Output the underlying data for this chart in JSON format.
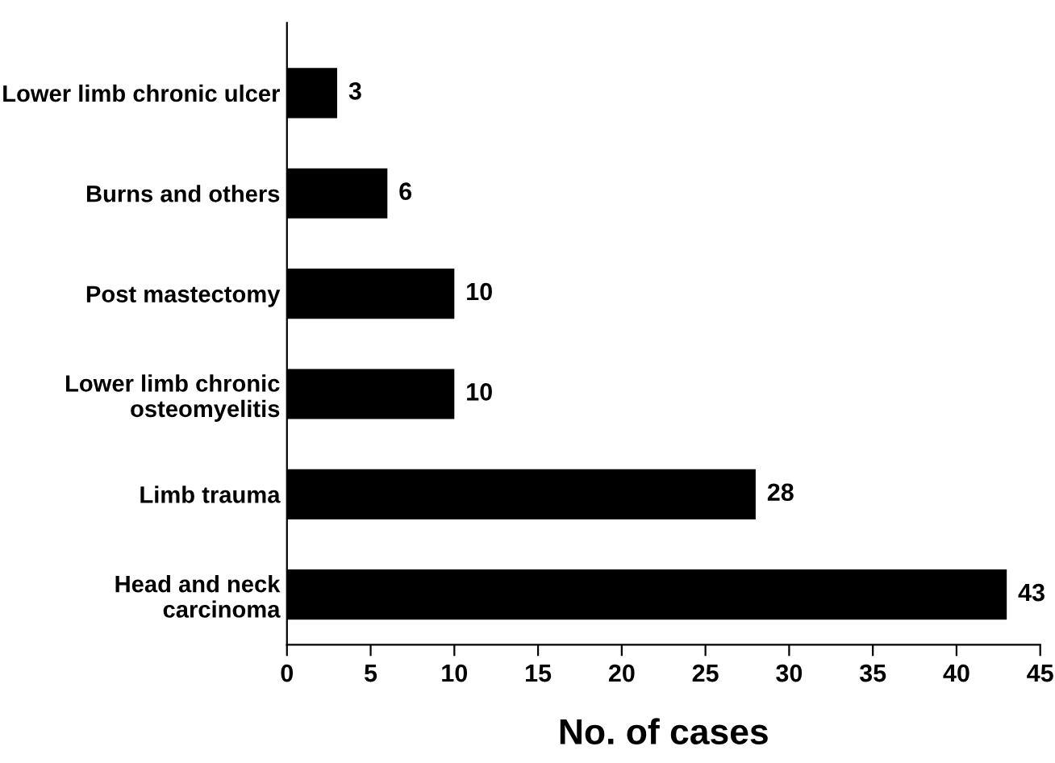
{
  "chart_data": {
    "type": "bar",
    "orientation": "horizontal",
    "xlabel": "No. of cases",
    "categories": [
      "Lower limb chronic ulcer",
      "Burns and others",
      "Post mastectomy",
      "Lower limb chronic\nosteomyelitis",
      "Limb trauma",
      "Head and neck\ncarcinoma"
    ],
    "values": [
      3,
      6,
      10,
      10,
      28,
      43
    ],
    "color": "#000000",
    "xlim": [
      0,
      45
    ],
    "xticks": [
      0,
      5,
      10,
      15,
      20,
      25,
      30,
      35,
      40,
      45
    ],
    "data_labels": true,
    "grid": false,
    "legend": false
  }
}
